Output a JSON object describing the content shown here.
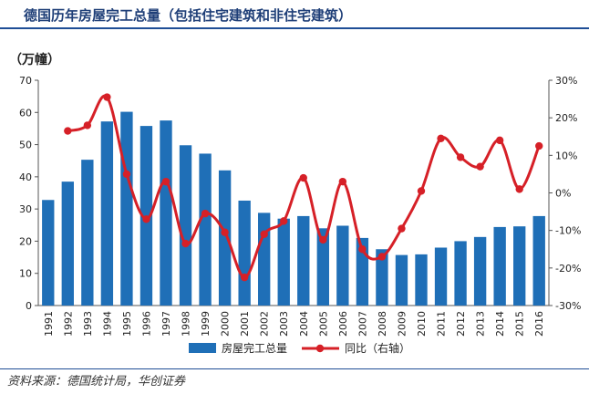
{
  "header": {
    "title": "德国历年房屋完工总量（包括住宅建筑和非住宅建筑）"
  },
  "footer": {
    "source": "资料来源：德国统计局，华创证券"
  },
  "chart_data": {
    "type": "bar",
    "title": "德国历年房屋完工总量（包括住宅建筑和非住宅建筑）",
    "ylabel": "（万幢）",
    "y2label": "同比（右轴）",
    "ylim": [
      0,
      70
    ],
    "y2lim": [
      -30,
      30
    ],
    "y_ticks": [
      "0",
      "10",
      "20",
      "30",
      "40",
      "50",
      "60",
      "70"
    ],
    "y2_ticks": [
      "-30%",
      "-20%",
      "-10%",
      "0%",
      "10%",
      "20%",
      "30%"
    ],
    "categories": [
      "1991",
      "1992",
      "1993",
      "1994",
      "1995",
      "1996",
      "1997",
      "1998",
      "1999",
      "2000",
      "2001",
      "2002",
      "2003",
      "2004",
      "2005",
      "2006",
      "2007",
      "2008",
      "2009",
      "2010",
      "2011",
      "2012",
      "2013",
      "2014",
      "2015",
      "2016"
    ],
    "series": [
      {
        "name": "房屋完工总量",
        "type": "bar",
        "axis": "left",
        "color": "#1f6fb7",
        "values": [
          32.8,
          38.5,
          45.3,
          57.2,
          60.2,
          55.8,
          57.5,
          49.8,
          47.2,
          42.0,
          32.6,
          28.8,
          27.0,
          27.8,
          24.0,
          24.8,
          21.0,
          17.5,
          15.7,
          15.9,
          18.0,
          20.0,
          21.3,
          24.4,
          24.6,
          27.8
        ]
      },
      {
        "name": "同比（右轴）",
        "type": "line",
        "axis": "right",
        "color": "#d62027",
        "start_index": 1,
        "values": [
          null,
          16.5,
          18.0,
          25.5,
          5.0,
          -7.0,
          3.0,
          -13.5,
          -5.5,
          -10.5,
          -22.5,
          -11.0,
          -7.5,
          4.0,
          -12.5,
          3.0,
          -15.0,
          -17.0,
          -9.5,
          0.5,
          14.5,
          9.5,
          7.0,
          14.0,
          1.0,
          12.5
        ]
      }
    ],
    "legend": [
      "房屋完工总量",
      "同比（右轴）"
    ],
    "legend_position": "bottom",
    "grid": false
  }
}
